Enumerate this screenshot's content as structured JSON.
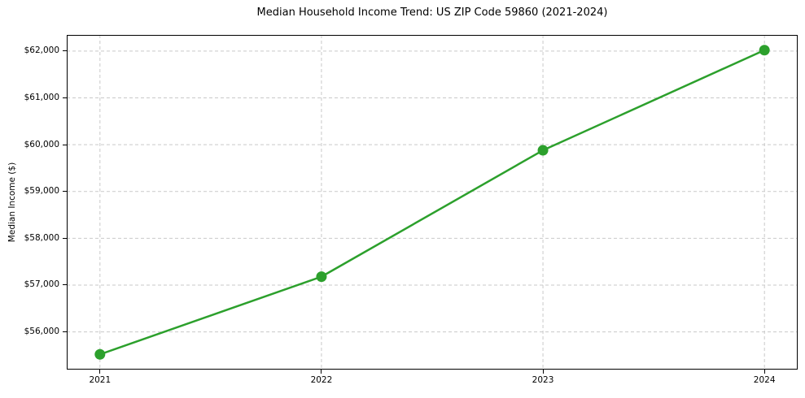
{
  "chart_data": {
    "type": "line",
    "title": "Median Household Income Trend: US ZIP Code 59860 (2021-2024)",
    "xlabel": "",
    "ylabel": "Median Income ($)",
    "x": [
      2021,
      2022,
      2023,
      2024
    ],
    "series": [
      {
        "name": "Median Income",
        "values": [
          55520,
          57180,
          59880,
          62020
        ],
        "color": "#2ca02c",
        "marker": "circle",
        "marker_size": 13,
        "line_width": 2.5
      }
    ],
    "x_tick_labels": [
      "2021",
      "2022",
      "2023",
      "2024"
    ],
    "y_tick_values": [
      56000,
      57000,
      58000,
      59000,
      60000,
      61000,
      62000
    ],
    "y_tick_labels": [
      "$56,000",
      "$57,000",
      "$58,000",
      "$59,000",
      "$60,000",
      "$61,000",
      "$62,000"
    ],
    "xlim": [
      2020.85,
      2024.15
    ],
    "ylim": [
      55195,
      62345
    ],
    "grid": {
      "visible": true,
      "style": "dashed",
      "axes": "both",
      "color": "#c9c9c9"
    },
    "legend": {
      "visible": false
    },
    "background_color": "#ffffff",
    "spine_color": "#000000",
    "text_color": "#000000"
  }
}
